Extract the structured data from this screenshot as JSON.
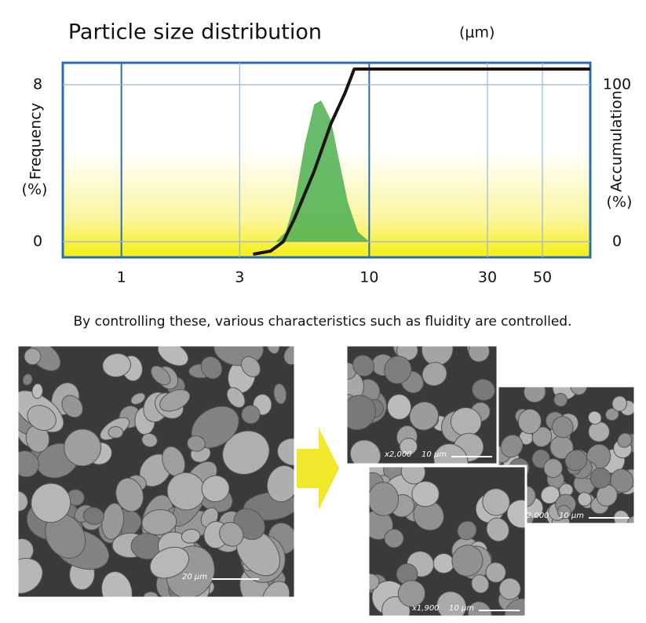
{
  "chart_data": {
    "type": "line",
    "title": "Particle size distribution",
    "x_unit": "(μm)",
    "y_label": "Frequency",
    "y_unit": "(%)",
    "y2_label": "Accumulation",
    "y2_unit": "(%)",
    "xscale": "log",
    "xlim": [
      0.58,
      78
    ],
    "xticks": [
      1,
      3,
      10,
      30,
      50
    ],
    "ylim": [
      -0.8,
      9.12
    ],
    "yticks": [
      0,
      8
    ],
    "y2lim": [
      -10,
      114
    ],
    "y2ticks": [
      0,
      100
    ],
    "grid": true,
    "series": [
      {
        "kind": "area",
        "color": "#4caf50",
        "x": [
          4.2,
          4.6,
          5.0,
          5.5,
          6.0,
          6.4,
          7.0,
          7.6,
          8.2,
          9.0,
          10
        ],
        "values": [
          0,
          0.5,
          2,
          5,
          7,
          7.2,
          6.2,
          4,
          2,
          0.5,
          0
        ]
      },
      {
        "kind": "line",
        "axis": "y2",
        "color": "#1a1410",
        "x": [
          3.4,
          4.0,
          4.5,
          5.0,
          6.0,
          7.0,
          8.0,
          8.7,
          10,
          20,
          78
        ],
        "values": [
          -8,
          -6,
          0,
          15,
          45,
          75,
          95,
          110,
          110,
          110,
          110
        ]
      }
    ]
  },
  "caption": "By controlling these, various characteristics such as fluidity are controlled.",
  "images": [
    {
      "scale": "20 μm"
    },
    {
      "magnification": "x2,000",
      "scale": "10 μm"
    },
    {
      "magnification": "x2,000",
      "scale": "10 μm"
    },
    {
      "magnification": "x1,900",
      "scale": "10 μm"
    }
  ]
}
